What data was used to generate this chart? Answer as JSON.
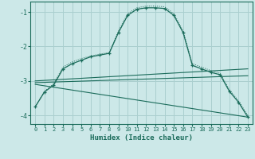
{
  "xlabel": "Humidex (Indice chaleur)",
  "background_color": "#cce8e8",
  "grid_color": "#aacfcf",
  "line_color": "#1a6b5a",
  "xlim": [
    -0.5,
    23.5
  ],
  "ylim": [
    -4.25,
    -0.7
  ],
  "yticks": [
    -4,
    -3,
    -2,
    -1
  ],
  "xticks": [
    0,
    1,
    2,
    3,
    4,
    5,
    6,
    7,
    8,
    9,
    10,
    11,
    12,
    13,
    14,
    15,
    16,
    17,
    18,
    19,
    20,
    21,
    22,
    23
  ],
  "curve1_x": [
    0,
    1,
    2,
    3,
    4,
    5,
    6,
    7,
    8,
    9,
    10,
    11,
    12,
    13,
    14,
    15,
    16,
    17,
    18,
    19,
    20,
    21,
    22,
    23
  ],
  "curve1_y": [
    -3.75,
    -3.32,
    -3.12,
    -2.65,
    -2.5,
    -2.4,
    -2.3,
    -2.25,
    -2.2,
    -1.6,
    -1.1,
    -0.92,
    -0.88,
    -0.88,
    -0.9,
    -1.1,
    -1.6,
    -2.55,
    -2.65,
    -2.75,
    -2.82,
    -3.3,
    -3.62,
    -4.05
  ],
  "curve2_x": [
    0,
    1,
    2,
    3,
    4,
    5,
    6,
    7,
    8,
    9,
    10,
    11,
    12,
    13,
    14,
    15,
    16,
    17,
    18,
    19,
    20,
    21,
    22,
    23
  ],
  "curve2_y": [
    -3.75,
    -3.3,
    -3.08,
    -2.6,
    -2.45,
    -2.35,
    -2.28,
    -2.22,
    -2.18,
    -1.55,
    -1.05,
    -0.88,
    -0.83,
    -0.83,
    -0.85,
    -1.05,
    -1.55,
    -2.5,
    -2.6,
    -2.7,
    -2.78,
    -3.25,
    -3.58,
    -4.0
  ],
  "line1_x": [
    0,
    23
  ],
  "line1_y": [
    -3.0,
    -2.65
  ],
  "line2_x": [
    0,
    23
  ],
  "line2_y": [
    -3.05,
    -2.85
  ],
  "line3_x": [
    0,
    23
  ],
  "line3_y": [
    -3.1,
    -4.05
  ]
}
